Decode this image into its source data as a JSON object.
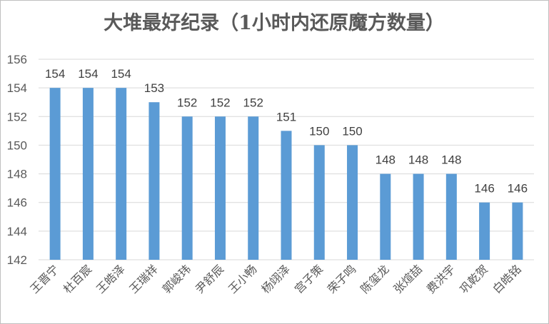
{
  "chart_data": {
    "type": "bar",
    "title": "大堆最好纪录（1小时内还原魔方数量）",
    "xlabel": "",
    "ylabel": "",
    "categories": [
      "王晋宁",
      "杜百宸",
      "王皓泽",
      "王瑞祥",
      "郭峻玮",
      "尹舒辰",
      "王小畅",
      "杨翊泽",
      "宫子策",
      "荣子鸣",
      "陈玺龙",
      "张煊喆",
      "费洪宇",
      "巩乾贺",
      "白皓铭"
    ],
    "values": [
      154,
      154,
      154,
      153,
      152,
      152,
      152,
      151,
      150,
      150,
      148,
      148,
      148,
      146,
      146
    ],
    "ylim": [
      142,
      156
    ],
    "yticks": [
      142,
      144,
      146,
      148,
      150,
      152,
      154,
      156
    ],
    "grid": true,
    "legend": "none",
    "colors": {
      "bar": "#5b9bd5",
      "grid": "#d9d9d9",
      "text": "#595959"
    }
  }
}
